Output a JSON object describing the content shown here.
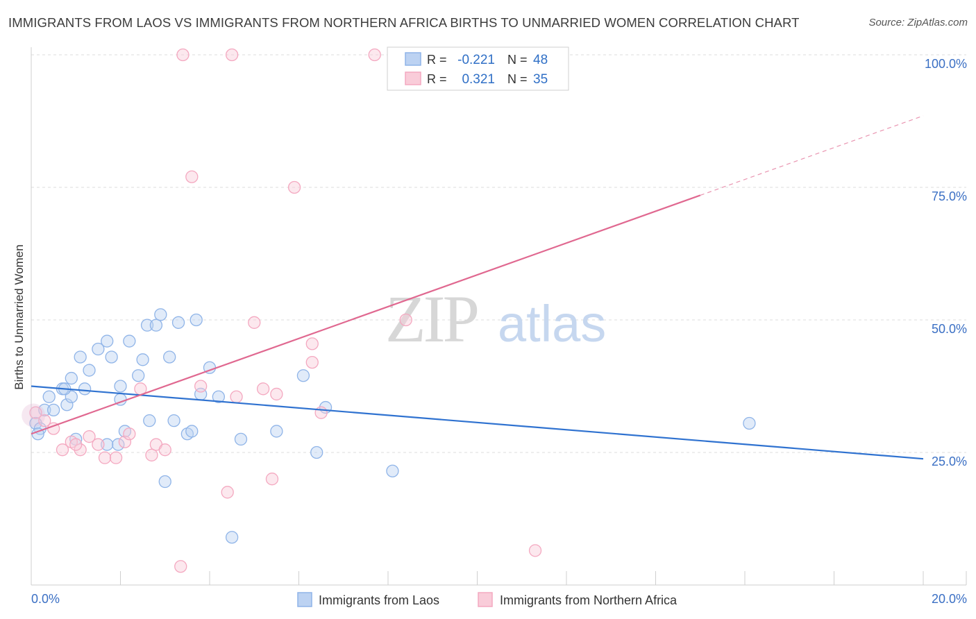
{
  "title": "IMMIGRANTS FROM LAOS VS IMMIGRANTS FROM NORTHERN AFRICA BIRTHS TO UNMARRIED WOMEN CORRELATION CHART",
  "source": "Source: ZipAtlas.com",
  "watermark": {
    "zip": "ZIP",
    "atlas": "atlas"
  },
  "chart_data": {
    "type": "scatter",
    "title": "IMMIGRANTS FROM LAOS VS IMMIGRANTS FROM NORTHERN AFRICA BIRTHS TO UNMARRIED WOMEN CORRELATION CHART",
    "xlabel": "",
    "ylabel": "Births to Unmarried Women",
    "xlim": [
      0,
      20
    ],
    "ylim": [
      0,
      100
    ],
    "x_tick_labels": [
      "0.0%",
      "20.0%"
    ],
    "y_ticks": [
      25,
      50,
      75,
      100
    ],
    "y_tick_labels": [
      "25.0%",
      "50.0%",
      "75.0%",
      "100.0%"
    ],
    "legend_position": "top-center",
    "legend": [
      {
        "r_label": "R =",
        "r_value": "-0.221",
        "n_label": "N =",
        "n_value": "48"
      },
      {
        "r_label": "R =",
        "r_value": "0.321",
        "n_label": "N =",
        "n_value": "35"
      }
    ],
    "series": [
      {
        "name": "Immigrants from Laos",
        "color": "#8fb4e8",
        "line_color": "#2f72d0",
        "trend": {
          "x0": 0,
          "y0": 37.5,
          "x1": 20,
          "y1": 23.8,
          "dashed_from": null
        },
        "points": [
          [
            0.1,
            30.5
          ],
          [
            0.2,
            29.5
          ],
          [
            0.3,
            33
          ],
          [
            0.4,
            35.5
          ],
          [
            0.5,
            33
          ],
          [
            0.7,
            37
          ],
          [
            0.8,
            34
          ],
          [
            0.9,
            35.5
          ],
          [
            0.75,
            37
          ],
          [
            0.9,
            39
          ],
          [
            1.0,
            27.5
          ],
          [
            1.1,
            43
          ],
          [
            1.3,
            40.5
          ],
          [
            1.2,
            37
          ],
          [
            1.5,
            44.5
          ],
          [
            1.7,
            46
          ],
          [
            1.8,
            43
          ],
          [
            1.7,
            26.5
          ],
          [
            2.0,
            37.5
          ],
          [
            2.0,
            35
          ],
          [
            2.1,
            29
          ],
          [
            2.2,
            46
          ],
          [
            2.4,
            39.5
          ],
          [
            2.5,
            42.5
          ],
          [
            2.6,
            49
          ],
          [
            2.8,
            49
          ],
          [
            2.9,
            51
          ],
          [
            2.65,
            31
          ],
          [
            3.1,
            43
          ],
          [
            3.2,
            31
          ],
          [
            3.3,
            49.5
          ],
          [
            3.5,
            28.5
          ],
          [
            3.6,
            29
          ],
          [
            3.7,
            50
          ],
          [
            3.8,
            36
          ],
          [
            4.0,
            41
          ],
          [
            4.2,
            35.5
          ],
          [
            4.5,
            9
          ],
          [
            4.7,
            27.5
          ],
          [
            5.5,
            29
          ],
          [
            6.1,
            39.5
          ],
          [
            6.4,
            25
          ],
          [
            6.6,
            33.5
          ],
          [
            8.1,
            21.5
          ],
          [
            16.1,
            30.5
          ],
          [
            1.95,
            26.5
          ],
          [
            3.0,
            19.5
          ],
          [
            0.15,
            28.5
          ]
        ]
      },
      {
        "name": "Immigrants from Northern Africa",
        "color": "#f4a8c0",
        "line_color": "#e06890",
        "trend": {
          "x0": 0,
          "y0": 28.5,
          "x1": 20,
          "y1": 88.5,
          "dashed_from": 15
        },
        "points": [
          [
            0.1,
            32.5
          ],
          [
            0.3,
            31
          ],
          [
            0.5,
            29.5
          ],
          [
            0.7,
            25.5
          ],
          [
            0.9,
            27
          ],
          [
            1.1,
            25.5
          ],
          [
            1.3,
            28
          ],
          [
            1.5,
            26.5
          ],
          [
            1.65,
            24
          ],
          [
            1.9,
            24
          ],
          [
            2.1,
            27
          ],
          [
            2.2,
            28.5
          ],
          [
            2.45,
            37
          ],
          [
            2.7,
            24.5
          ],
          [
            2.8,
            26.5
          ],
          [
            3.0,
            25.5
          ],
          [
            3.35,
            3.5
          ],
          [
            3.4,
            100
          ],
          [
            3.6,
            77
          ],
          [
            3.8,
            37.5
          ],
          [
            4.4,
            17.5
          ],
          [
            4.5,
            100
          ],
          [
            4.6,
            35.5
          ],
          [
            5.0,
            49.5
          ],
          [
            5.2,
            37
          ],
          [
            5.4,
            20
          ],
          [
            5.5,
            36
          ],
          [
            5.9,
            75
          ],
          [
            6.3,
            45.5
          ],
          [
            6.3,
            42
          ],
          [
            6.5,
            32.5
          ],
          [
            7.7,
            100
          ],
          [
            8.4,
            50
          ],
          [
            11.3,
            6.5
          ],
          [
            1.0,
            26.5
          ]
        ]
      }
    ]
  },
  "bottom_legend": [
    "Immigrants from Laos",
    "Immigrants from Northern Africa"
  ]
}
